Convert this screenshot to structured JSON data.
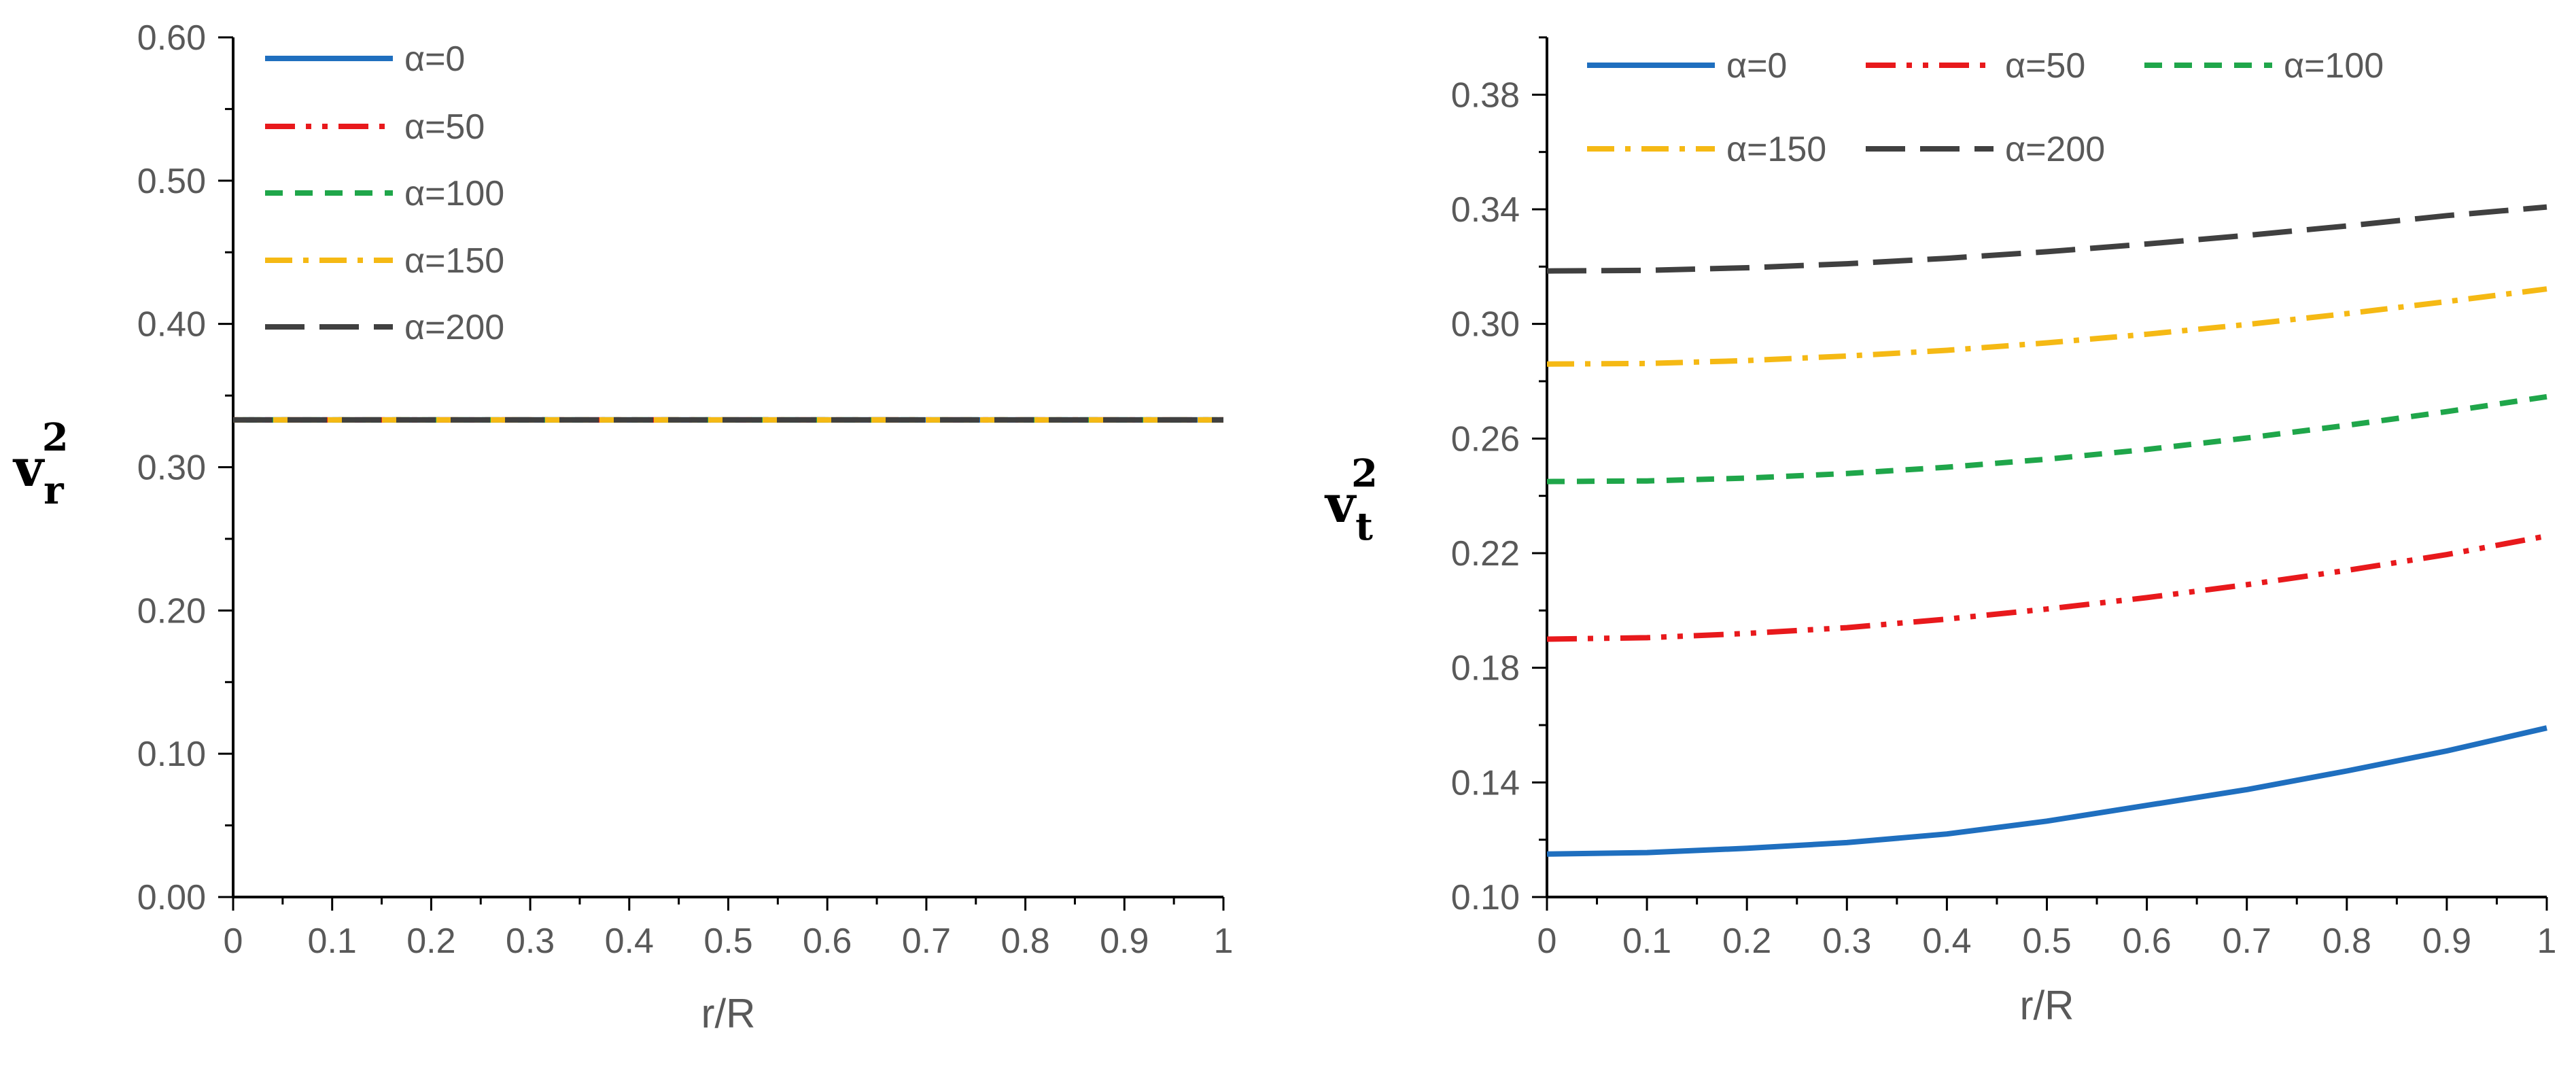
{
  "chart_data": [
    {
      "type": "line",
      "title": "",
      "xlabel": "r/R",
      "ylabel": {
        "base": "v",
        "sub": "r",
        "sup": "2"
      },
      "xlim": [
        0,
        1
      ],
      "ylim": [
        0,
        0.6
      ],
      "x_ticks": [
        "0",
        "0.1",
        "0.2",
        "0.3",
        "0.4",
        "0.5",
        "0.6",
        "0.7",
        "0.8",
        "0.9",
        "1"
      ],
      "x_tick_values": [
        0,
        0.1,
        0.2,
        0.3,
        0.4,
        0.5,
        0.6,
        0.7,
        0.8,
        0.9,
        1
      ],
      "y_ticks": [
        "0.00",
        "0.10",
        "0.20",
        "0.30",
        "0.40",
        "0.50",
        "0.60"
      ],
      "y_tick_values": [
        0,
        0.1,
        0.2,
        0.3,
        0.4,
        0.5,
        0.6
      ],
      "grid": false,
      "legend": "top-left",
      "x": [
        0,
        0.1,
        0.2,
        0.3,
        0.4,
        0.5,
        0.6,
        0.7,
        0.8,
        0.9,
        1
      ],
      "series": [
        {
          "name": "α=0",
          "color": "#1F6FBF",
          "dash": "solid",
          "values": [
            0.333,
            0.333,
            0.333,
            0.333,
            0.333,
            0.333,
            0.333,
            0.333,
            0.333,
            0.333,
            0.333
          ]
        },
        {
          "name": "α=50",
          "color": "#E8191C",
          "dash": "dash-dot-dot",
          "values": [
            0.333,
            0.333,
            0.333,
            0.333,
            0.333,
            0.333,
            0.333,
            0.333,
            0.333,
            0.333,
            0.333
          ]
        },
        {
          "name": "α=100",
          "color": "#1FA64A",
          "dash": "short-dash",
          "values": [
            0.333,
            0.333,
            0.333,
            0.333,
            0.333,
            0.333,
            0.333,
            0.333,
            0.333,
            0.333,
            0.333
          ]
        },
        {
          "name": "α=150",
          "color": "#F5B914",
          "dash": "dash-dot",
          "values": [
            0.333,
            0.333,
            0.333,
            0.333,
            0.333,
            0.333,
            0.333,
            0.333,
            0.333,
            0.333,
            0.333
          ]
        },
        {
          "name": "α=200",
          "color": "#404040",
          "dash": "long-dash",
          "values": [
            0.333,
            0.333,
            0.333,
            0.333,
            0.333,
            0.333,
            0.333,
            0.333,
            0.333,
            0.333,
            0.333
          ]
        }
      ]
    },
    {
      "type": "line",
      "title": "",
      "xlabel": "r/R",
      "ylabel": {
        "base": "v",
        "sub": "t",
        "sup": "2"
      },
      "xlim": [
        0,
        1
      ],
      "ylim": [
        0.1,
        0.4
      ],
      "x_ticks": [
        "0",
        "0.1",
        "0.2",
        "0.3",
        "0.4",
        "0.5",
        "0.6",
        "0.7",
        "0.8",
        "0.9",
        "1"
      ],
      "x_tick_values": [
        0,
        0.1,
        0.2,
        0.3,
        0.4,
        0.5,
        0.6,
        0.7,
        0.8,
        0.9,
        1
      ],
      "y_ticks": [
        "0.10",
        "0.14",
        "0.18",
        "0.22",
        "0.26",
        "0.30",
        "0.34",
        "0.38"
      ],
      "y_tick_values": [
        0.1,
        0.14,
        0.18,
        0.22,
        0.26,
        0.3,
        0.34,
        0.38
      ],
      "grid": false,
      "legend": "top",
      "x": [
        0,
        0.1,
        0.2,
        0.3,
        0.4,
        0.5,
        0.6,
        0.7,
        0.8,
        0.9,
        1
      ],
      "series": [
        {
          "name": "α=0",
          "color": "#1F6FBF",
          "dash": "solid",
          "values": [
            0.115,
            0.1155,
            0.117,
            0.119,
            0.122,
            0.1265,
            0.132,
            0.1375,
            0.144,
            0.151,
            0.159
          ]
        },
        {
          "name": "α=50",
          "color": "#E8191C",
          "dash": "dash-dot-dot",
          "values": [
            0.19,
            0.1905,
            0.192,
            0.194,
            0.197,
            0.2005,
            0.2045,
            0.209,
            0.214,
            0.2195,
            0.226
          ]
        },
        {
          "name": "α=100",
          "color": "#1FA64A",
          "dash": "short-dash",
          "values": [
            0.245,
            0.2452,
            0.2462,
            0.2478,
            0.25,
            0.2528,
            0.2562,
            0.2602,
            0.2646,
            0.2694,
            0.2746
          ]
        },
        {
          "name": "α=150",
          "color": "#F5B914",
          "dash": "dash-dot",
          "values": [
            0.286,
            0.2862,
            0.2872,
            0.2888,
            0.2908,
            0.2934,
            0.2964,
            0.2998,
            0.3036,
            0.3078,
            0.3122
          ]
        },
        {
          "name": "α=200",
          "color": "#404040",
          "dash": "long-dash",
          "values": [
            0.3185,
            0.3187,
            0.3196,
            0.321,
            0.3229,
            0.3252,
            0.3279,
            0.3309,
            0.3342,
            0.3378,
            0.3408
          ]
        }
      ]
    }
  ]
}
